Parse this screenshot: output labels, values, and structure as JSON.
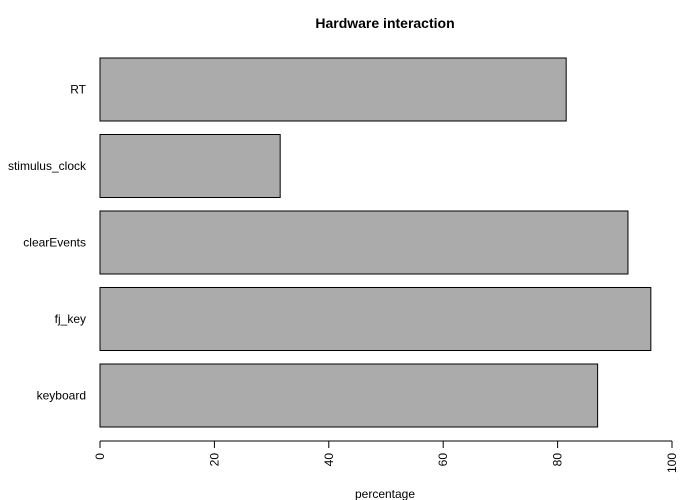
{
  "chart_data": {
    "type": "bar",
    "orientation": "horizontal",
    "title": "Hardware interaction",
    "xlabel": "percentage",
    "ylabel": "",
    "categories": [
      "RT",
      "stimulus_clock",
      "clearEvents",
      "fj_key",
      "keyboard"
    ],
    "values": [
      81.5,
      31.5,
      92.3,
      96.3,
      87.0
    ],
    "xlim": [
      0,
      100
    ],
    "x_ticks": [
      "0",
      "20",
      "40",
      "60",
      "80",
      "100"
    ],
    "bar_color": "#ABABAB",
    "bar_border_color": "#000000",
    "grid": false,
    "legend": "none"
  }
}
